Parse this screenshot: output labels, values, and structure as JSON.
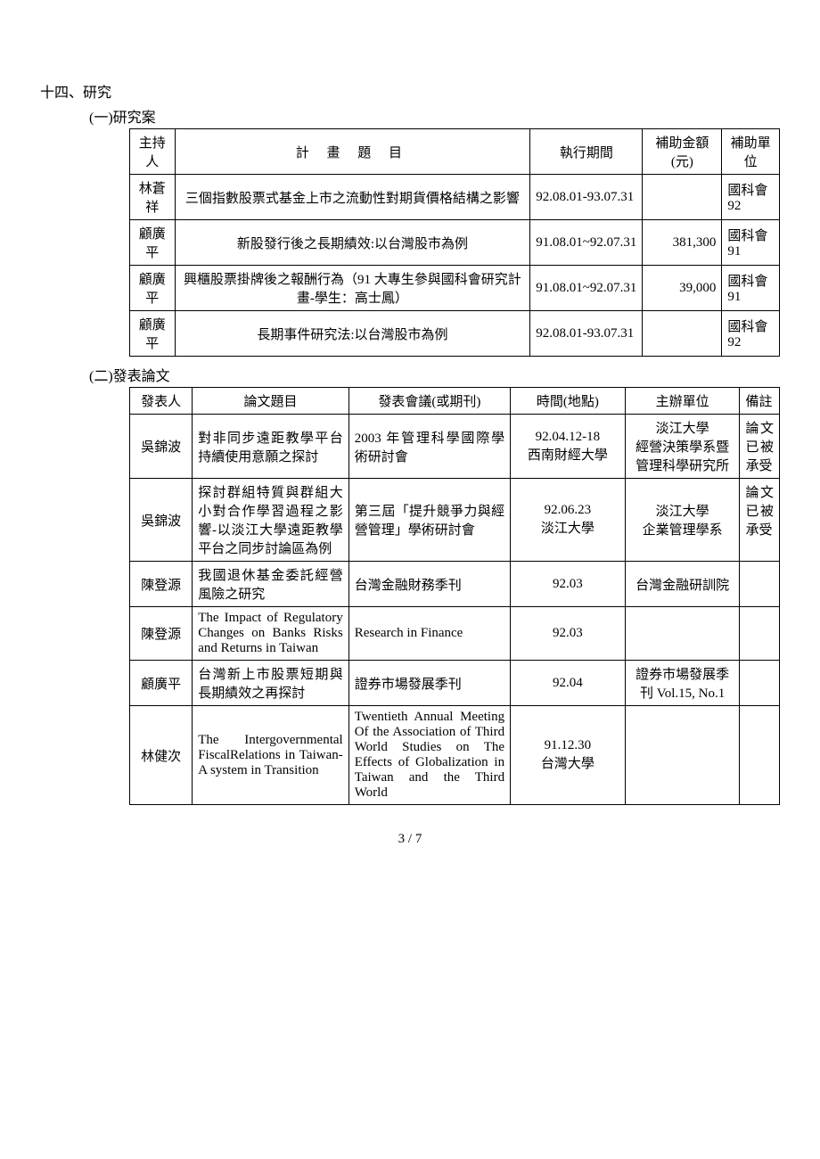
{
  "section_title": "十四、研究",
  "sub1_title": "(一)研究案",
  "sub2_title": "(二)發表論文",
  "page_number": "3 / 7",
  "table1": {
    "headers": [
      "主持人",
      "計 畫 題 目",
      "執行期間",
      "補助金額(元)",
      "補助單位"
    ],
    "rows": [
      {
        "host": "林蒼祥",
        "title": "三個指數股票式基金上市之流動性對期貨價格結構之影響",
        "period": "92.08.01-93.07.31",
        "amount": "",
        "agency": "國科會 92"
      },
      {
        "host": "顧廣平",
        "title": "新股發行後之長期績效:以台灣股市為例",
        "period": "91.08.01~92.07.31",
        "amount": "381,300",
        "agency": "國科會 91"
      },
      {
        "host": "顧廣平",
        "title": "興櫃股票掛牌後之報酬行為（91 大專生參與國科會研究計畫-學生：高士鳳）",
        "period": "91.08.01~92.07.31",
        "amount": "39,000",
        "agency": "國科會 91"
      },
      {
        "host": "顧廣平",
        "title": "長期事件研究法:以台灣股市為例",
        "period": "92.08.01-93.07.31",
        "amount": "",
        "agency": "國科會 92"
      }
    ]
  },
  "table2": {
    "headers": [
      "發表人",
      "論文題目",
      "發表會議(或期刊)",
      "時間(地點)",
      "主辦單位",
      "備註"
    ],
    "rows": [
      {
        "author": "吳錦波",
        "title": "對非同步遠距教學平台持續使用意願之探討",
        "conf": "2003 年管理科學國際學術研討會",
        "time": "92.04.12-18\n西南財經大學",
        "org": "淡江大學\n經營決策學系暨管理科學研究所",
        "note": "論文已被承受"
      },
      {
        "author": "吳錦波",
        "title": "探討群組特質與群組大小對合作學習過程之影響-以淡江大學遠距教學平台之同步討論區為例",
        "conf": "第三屆「提升競爭力與經營管理」學術研討會",
        "time": "92.06.23\n淡江大學",
        "org": "淡江大學\n企業管理學系",
        "note": "論文已被承受"
      },
      {
        "author": "陳登源",
        "title": "我國退休基金委託經營風險之研究",
        "conf": "台灣金融財務季刊",
        "time": "92.03",
        "org": "台灣金融研訓院",
        "note": ""
      },
      {
        "author": "陳登源",
        "title": "The Impact of Regulatory Changes on Banks Risks and Returns in Taiwan",
        "conf": "Research in Finance",
        "time": "92.03",
        "org": "",
        "note": ""
      },
      {
        "author": "顧廣平",
        "title": "台灣新上市股票短期與長期績效之再探討",
        "conf": "證券市場發展季刊",
        "time": "92.04",
        "org": "證券市場發展季刊 Vol.15, No.1",
        "note": ""
      },
      {
        "author": "林健次",
        "title": "The Intergovernmental FiscalRelations in Taiwan-A system in Transition",
        "conf": "Twentieth Annual Meeting Of the Association of Third World Studies on The Effects of Globalization in Taiwan and the Third World",
        "time": "91.12.30\n台灣大學",
        "org": "",
        "note": ""
      }
    ]
  }
}
